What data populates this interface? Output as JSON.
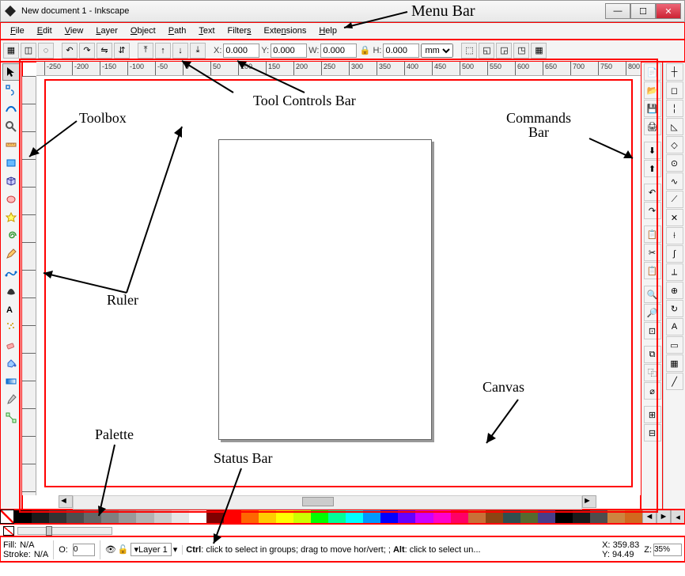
{
  "window": {
    "title": "New document 1 - Inkscape"
  },
  "menubar": [
    "File",
    "Edit",
    "View",
    "Layer",
    "Object",
    "Path",
    "Text",
    "Filters",
    "Extensions",
    "Help"
  ],
  "toolcontrols": {
    "x_label": "X:",
    "x_value": "0.000",
    "y_label": "Y:",
    "y_value": "0.000",
    "w_label": "W:",
    "w_value": "0.000",
    "h_label": "H:",
    "h_value": "0.000",
    "unit": "mm"
  },
  "ruler": {
    "start": -250,
    "step": 50,
    "major_count": 22
  },
  "status": {
    "fill_label": "Fill:",
    "fill_value": "N/A",
    "stroke_label": "Stroke:",
    "stroke_value": "N/A",
    "opacity_label": "O:",
    "opacity_value": "0",
    "layer_name": "Layer 1",
    "hint_pre": "Ctrl",
    "hint_mid": ": click to select in groups; drag to move hor/vert; ; ",
    "hint_alt": "Alt",
    "hint_post": ": click to select un...",
    "coord_x_label": "X:",
    "coord_x": "359.83",
    "coord_y_label": "Y:",
    "coord_y": "94.49",
    "zoom_label": "Z:",
    "zoom": "35%"
  },
  "palette_colors": [
    "#000000",
    "#1a1a1a",
    "#333333",
    "#4d4d4d",
    "#666666",
    "#808080",
    "#999999",
    "#b3b3b3",
    "#cccccc",
    "#e6e6e6",
    "#ffffff",
    "#800000",
    "#ff0000",
    "#ff6600",
    "#ffcc00",
    "#ffff00",
    "#ccff00",
    "#00ff00",
    "#00ff99",
    "#00ffff",
    "#0099ff",
    "#0000ff",
    "#6600ff",
    "#cc00ff",
    "#ff00cc",
    "#ff0066",
    "#c87137",
    "#8b4513",
    "#2f4f4f",
    "#556b2f",
    "#483d8b",
    "#000000",
    "#1a1a1a",
    "#4d4d4d",
    "#cd853f",
    "#d2691e"
  ],
  "annotations": {
    "menubar": "Menu Bar",
    "toolcontrols": "Tool Controls Bar",
    "toolbox": "Toolbox",
    "ruler": "Ruler",
    "commands": "Commands Bar",
    "canvas": "Canvas",
    "palette": "Palette",
    "statusbar": "Status Bar"
  },
  "colors": {
    "highlight": "#f00"
  }
}
